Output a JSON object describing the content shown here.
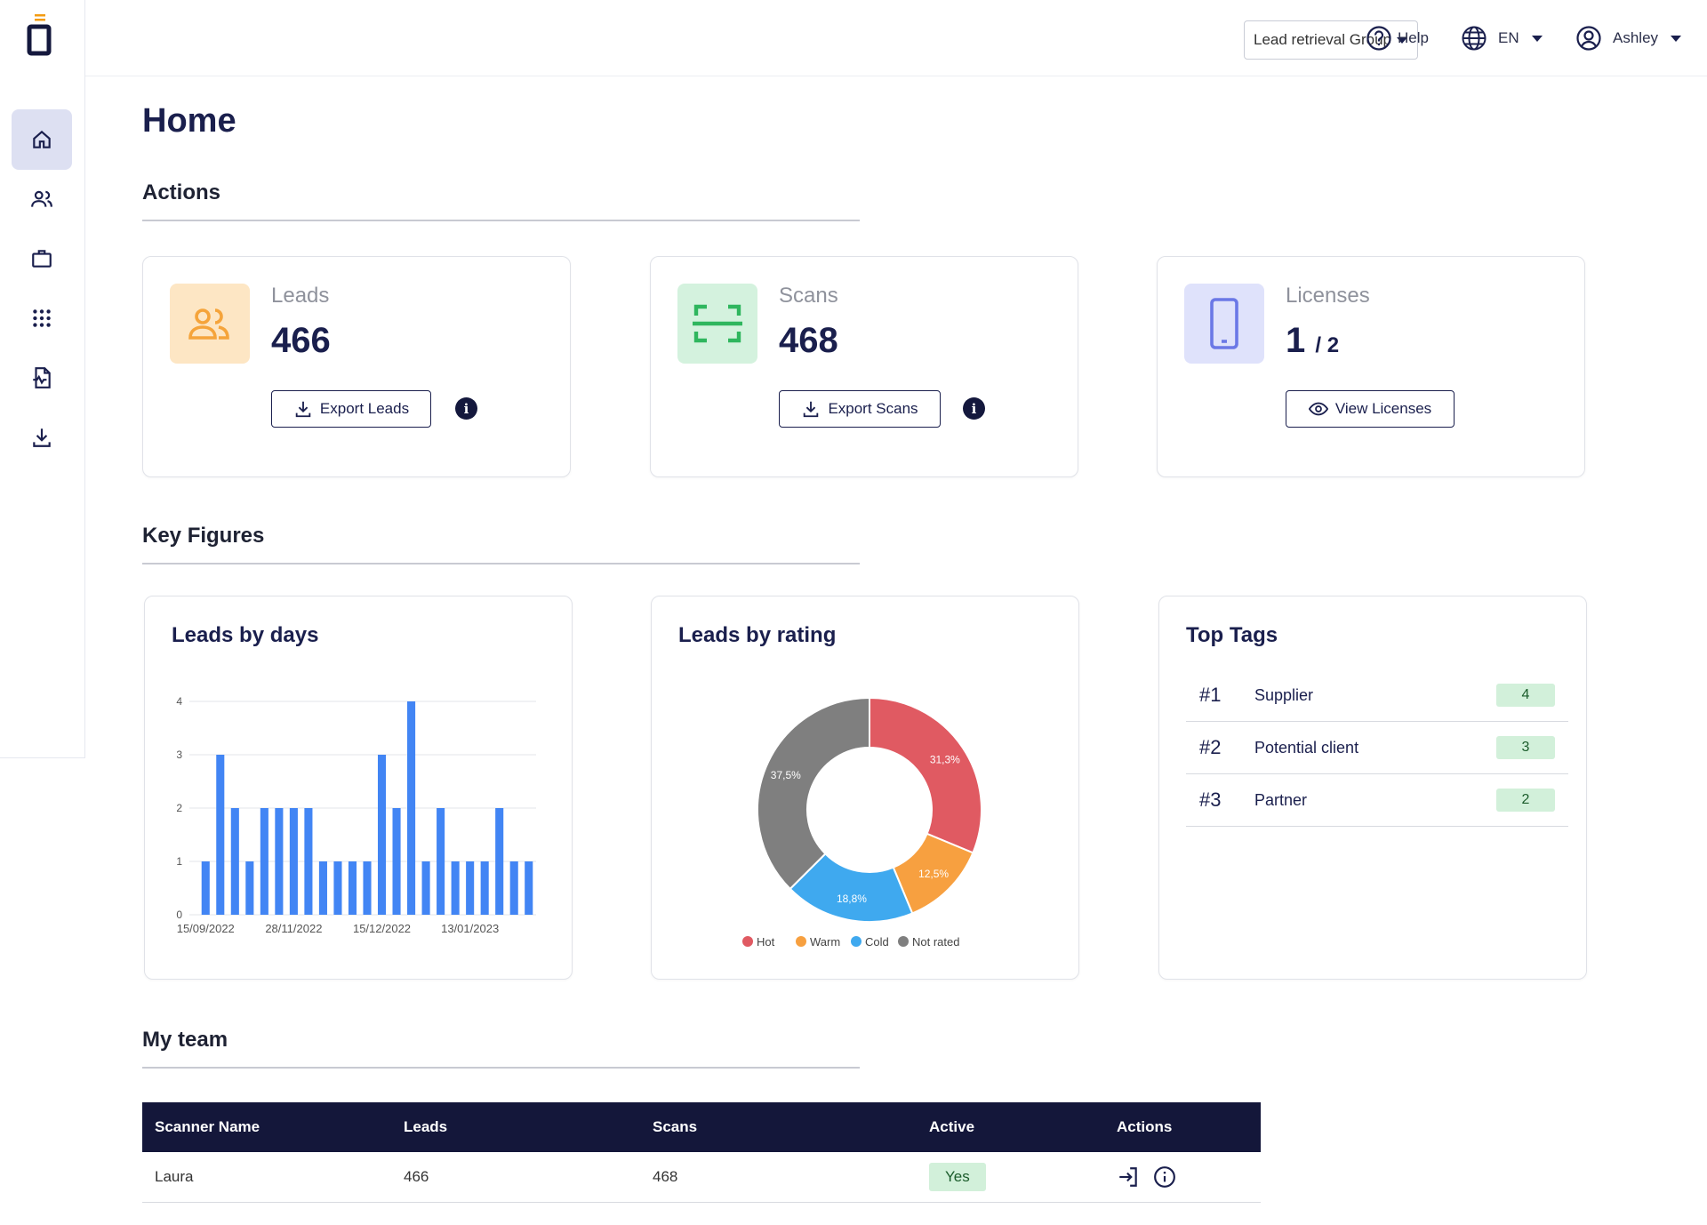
{
  "header": {
    "group_select": "Lead retrieval Group",
    "help_label": "Help",
    "language": "EN",
    "user_name": "Ashley"
  },
  "sidebar": {
    "items": [
      {
        "name": "home",
        "icon": "home-icon",
        "active": true
      },
      {
        "name": "leads",
        "icon": "users-icon"
      },
      {
        "name": "briefcase",
        "icon": "briefcase-icon"
      },
      {
        "name": "apps",
        "icon": "grid-icon"
      },
      {
        "name": "reports",
        "icon": "document-chart-icon"
      },
      {
        "name": "downloads",
        "icon": "download-icon"
      }
    ]
  },
  "page": {
    "title": "Home"
  },
  "actions": {
    "section_title": "Actions",
    "leads": {
      "label": "Leads",
      "value": "466",
      "button": "Export Leads"
    },
    "scans": {
      "label": "Scans",
      "value": "468",
      "button": "Export Scans"
    },
    "licenses": {
      "label": "Licenses",
      "used": "1",
      "total": "/ 2",
      "button": "View Licenses"
    }
  },
  "key_figures": {
    "section_title": "Key Figures",
    "leads_by_days_title": "Leads by days",
    "leads_by_rating_title": "Leads by rating",
    "top_tags_title": "Top Tags",
    "top_tags": [
      {
        "rank": "#1",
        "name": "Supplier",
        "count": "4"
      },
      {
        "rank": "#2",
        "name": "Potential client",
        "count": "3"
      },
      {
        "rank": "#3",
        "name": "Partner",
        "count": "2"
      }
    ]
  },
  "chart_data": [
    {
      "type": "bar",
      "title": "Leads by days",
      "ylim": [
        0,
        4
      ],
      "yticks": [
        0,
        1,
        2,
        3,
        4
      ],
      "xtick_labels": [
        "15/09/2022",
        "28/11/2022",
        "15/12/2022",
        "13/01/2023"
      ],
      "values": [
        1,
        3,
        2,
        1,
        2,
        2,
        2,
        2,
        1,
        1,
        1,
        1,
        3,
        2,
        4,
        1,
        2,
        1,
        1,
        1,
        2,
        1,
        1
      ],
      "color": "#4285f4",
      "grid": true
    },
    {
      "type": "pie",
      "title": "Leads by rating",
      "donut": true,
      "slices": [
        {
          "name": "Hot",
          "value": 31.3,
          "label": "31,3%",
          "color": "#e05a62"
        },
        {
          "name": "Warm",
          "value": 12.5,
          "label": "12,5%",
          "color": "#f7a040"
        },
        {
          "name": "Cold",
          "value": 18.8,
          "label": "18,8%",
          "color": "#3fa9ef"
        },
        {
          "name": "Not rated",
          "value": 37.5,
          "label": "37,5%",
          "color": "#7f7f7f"
        }
      ],
      "legend_position": "bottom"
    }
  ],
  "team": {
    "section_title": "My team",
    "columns": [
      "Scanner Name",
      "Leads",
      "Scans",
      "Active",
      "Actions"
    ],
    "rows": [
      {
        "name": "Laura",
        "leads": "466",
        "scans": "468",
        "active": "Yes"
      }
    ]
  },
  "colors": {
    "primary": "#1a1f4d",
    "leads_tile": "#fde6c4",
    "scans_tile": "#d4f2de",
    "licenses_tile": "#dfe2fb",
    "tag_badge": "#d2f0da"
  }
}
